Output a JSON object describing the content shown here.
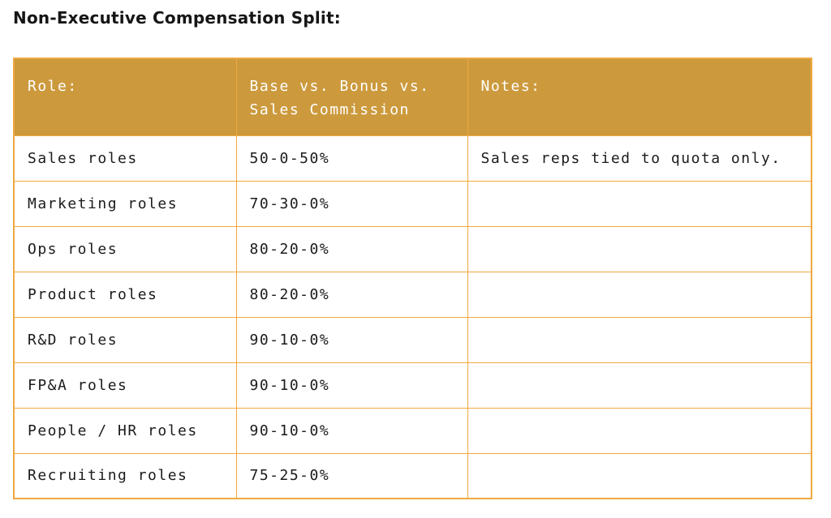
{
  "page": {
    "title": "Non-Executive Compensation Split:"
  },
  "table": {
    "columns": [
      {
        "label": "Role:"
      },
      {
        "label": "Base vs. Bonus vs. Sales Commission"
      },
      {
        "label": "Notes:"
      }
    ],
    "rows": [
      {
        "role": "Sales roles",
        "split": "50-0-50%",
        "notes": "Sales reps tied to quota only."
      },
      {
        "role": "Marketing roles",
        "split": "70-30-0%",
        "notes": ""
      },
      {
        "role": "Ops roles",
        "split": "80-20-0%",
        "notes": ""
      },
      {
        "role": "Product roles",
        "split": "80-20-0%",
        "notes": ""
      },
      {
        "role": "R&D roles",
        "split": "90-10-0%",
        "notes": ""
      },
      {
        "role": "FP&A roles",
        "split": "90-10-0%",
        "notes": ""
      },
      {
        "role": "People / HR roles",
        "split": "90-10-0%",
        "notes": ""
      },
      {
        "role": "Recruiting roles",
        "split": "75-25-0%",
        "notes": ""
      }
    ],
    "colors": {
      "header_bg": "#cc9a3d",
      "header_text": "#ffffff",
      "border": "#f0a840",
      "body_text": "#1b1b1b"
    }
  }
}
